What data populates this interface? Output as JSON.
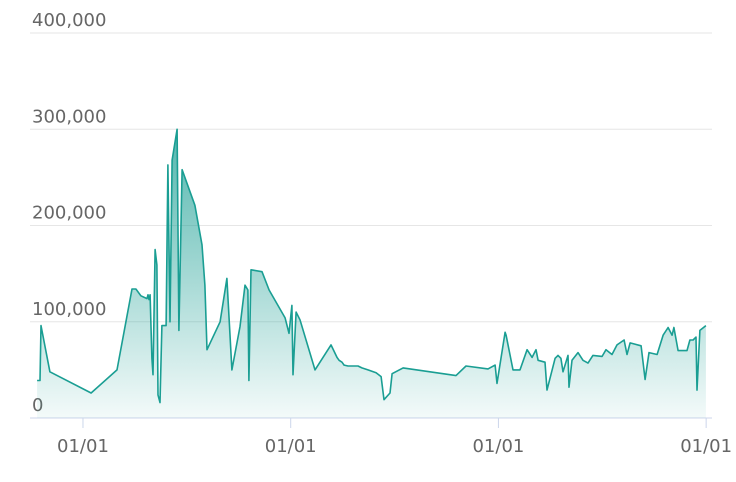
{
  "chart_data": {
    "type": "area",
    "x": [
      -0.221,
      -0.207,
      -0.202,
      -0.159,
      0.039,
      0.164,
      0.236,
      0.255,
      0.279,
      0.308,
      0.313,
      0.318,
      0.323,
      0.332,
      0.337,
      0.347,
      0.356,
      0.361,
      0.371,
      0.38,
      0.4,
      0.409,
      0.419,
      0.429,
      0.453,
      0.462,
      0.477,
      0.539,
      0.573,
      0.587,
      0.597,
      0.66,
      0.693,
      0.717,
      0.756,
      0.78,
      0.794,
      0.799,
      0.809,
      0.862,
      0.896,
      0.973,
      0.992,
      1.006,
      1.011,
      1.026,
      1.045,
      1.117,
      1.194,
      1.223,
      1.233,
      1.247,
      1.257,
      1.276,
      1.324,
      1.343,
      1.372,
      1.411,
      1.435,
      1.449,
      1.478,
      1.488,
      1.541,
      1.796,
      1.844,
      1.95,
      1.984,
      1.993,
      2.032,
      2.037,
      2.07,
      2.104,
      2.138,
      2.162,
      2.181,
      2.191,
      2.224,
      2.234,
      2.273,
      2.287,
      2.301,
      2.311,
      2.335,
      2.34,
      2.354,
      2.383,
      2.407,
      2.431,
      2.455,
      2.499,
      2.518,
      2.547,
      2.571,
      2.605,
      2.619,
      2.634,
      2.687,
      2.706,
      2.725,
      2.764,
      2.793,
      2.817,
      2.836,
      2.845,
      2.865,
      2.908,
      2.922,
      2.937,
      2.951,
      2.956,
      2.97,
      2.999
    ],
    "values": [
      39000,
      39000,
      96000,
      48000,
      26000,
      50000,
      134000,
      134000,
      127000,
      124000,
      128000,
      123000,
      128000,
      62000,
      45000,
      175000,
      159000,
      24000,
      16000,
      96000,
      96000,
      263000,
      100000,
      268000,
      300000,
      91000,
      258000,
      221000,
      180000,
      138000,
      71000,
      100000,
      145000,
      50000,
      95000,
      138000,
      133000,
      39000,
      154000,
      152000,
      133000,
      104000,
      88000,
      117000,
      45000,
      110000,
      102000,
      50000,
      76000,
      63000,
      60000,
      58000,
      55000,
      54000,
      54000,
      52000,
      50000,
      47000,
      43000,
      19000,
      26000,
      46000,
      52000,
      44000,
      54000,
      51000,
      55000,
      36000,
      89000,
      86000,
      50000,
      50000,
      71000,
      63000,
      71000,
      60000,
      58000,
      29000,
      62000,
      65000,
      62000,
      48000,
      65000,
      32000,
      60000,
      68000,
      60000,
      57000,
      65000,
      64000,
      71000,
      66000,
      76000,
      81000,
      66000,
      78000,
      75000,
      40000,
      68000,
      66000,
      86000,
      94000,
      86000,
      94000,
      70000,
      70000,
      81000,
      81000,
      84000,
      29000,
      91000,
      96000
    ],
    "color": "#1a9e93",
    "xlim": [
      -0.23,
      3.02
    ],
    "xticks": [
      {
        "value": 0,
        "label": "01/01"
      },
      {
        "value": 1,
        "label": "01/01"
      },
      {
        "value": 2,
        "label": "01/01"
      },
      {
        "value": 3,
        "label": "01/01"
      }
    ],
    "ylim": [
      0,
      400000
    ],
    "yticks": [
      0,
      {
        "value": 100000,
        "label": "100,000"
      },
      {
        "value": 200000,
        "label": "200,000"
      },
      {
        "value": 300000,
        "label": "300,000"
      },
      {
        "value": 400000,
        "label": "400,000"
      }
    ],
    "grid": true
  }
}
